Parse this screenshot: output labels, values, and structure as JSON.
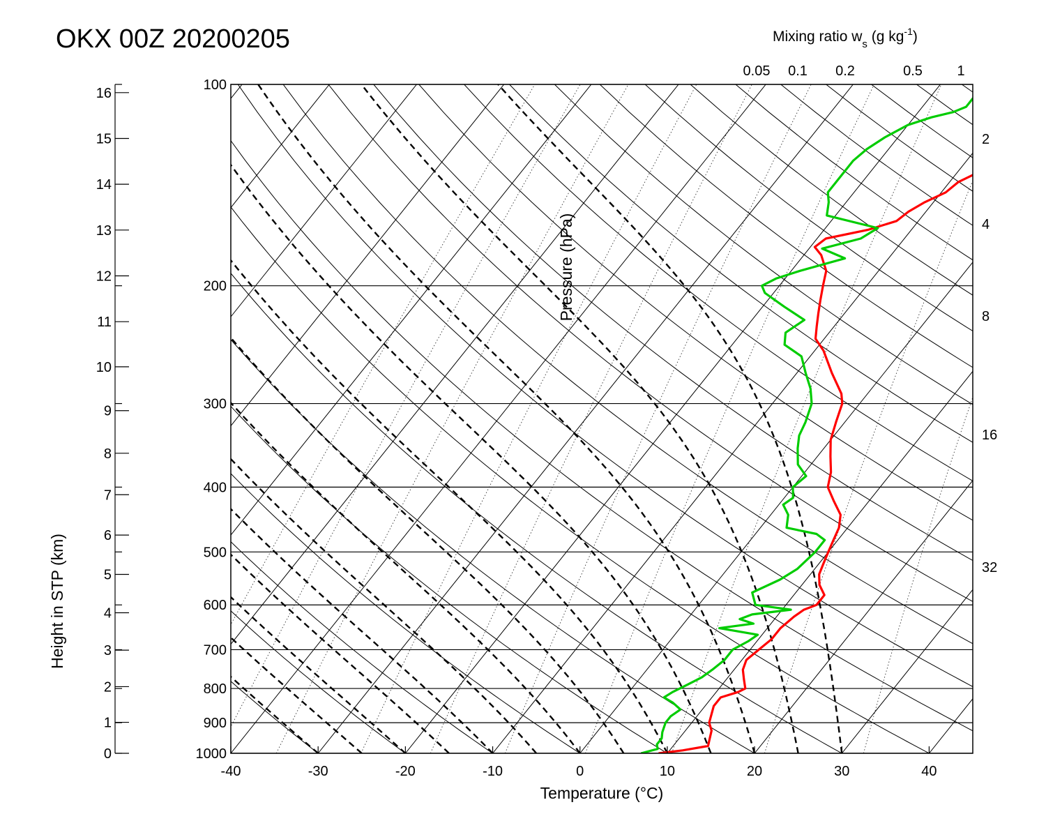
{
  "chart_data": {
    "type": "line",
    "title": "OKX 00Z 20200205",
    "xlabel": "Temperature (°C)",
    "ylabel": "Pressure (hPa)",
    "y2label": "Height in STP (km)",
    "top_label_main": "Mixing ratio w",
    "top_label_sub": "s",
    "top_label_unit": " (g kg",
    "top_label_sup": "-1",
    "top_label_close": ")",
    "xlim": [
      -40,
      45
    ],
    "ylim": [
      1000,
      100
    ],
    "x_ticks": [
      -40,
      -30,
      -20,
      -10,
      0,
      10,
      20,
      30,
      40
    ],
    "p_ticks": [
      100,
      200,
      300,
      400,
      500,
      600,
      700,
      800,
      900,
      1000
    ],
    "height_ticks": [
      0,
      1,
      2,
      3,
      4,
      5,
      6,
      7,
      8,
      9,
      10,
      11,
      12,
      13,
      14,
      15,
      16
    ],
    "mixing_top_labels": [
      "0.05",
      "0.1",
      "0.2",
      "0.5",
      "1"
    ],
    "mixing_right_labels": [
      "2",
      "4",
      "8",
      "16",
      "32"
    ],
    "colors": {
      "temperature": "#ff0000",
      "dewpoint": "#00cc00",
      "grid": "#000000"
    },
    "series": [
      {
        "key": "temperature",
        "points": [
          [
            1000,
            9
          ],
          [
            990,
            11.5
          ],
          [
            975,
            14
          ],
          [
            950,
            13.5
          ],
          [
            925,
            13
          ],
          [
            900,
            12
          ],
          [
            875,
            11.5
          ],
          [
            850,
            11
          ],
          [
            825,
            11
          ],
          [
            810,
            12.5
          ],
          [
            800,
            13
          ],
          [
            775,
            12
          ],
          [
            750,
            11
          ],
          [
            725,
            10.5
          ],
          [
            700,
            11
          ],
          [
            675,
            11.5
          ],
          [
            650,
            11.5
          ],
          [
            625,
            12
          ],
          [
            610,
            12.5
          ],
          [
            600,
            13.5
          ],
          [
            580,
            13.5
          ],
          [
            560,
            12
          ],
          [
            540,
            11
          ],
          [
            520,
            10.5
          ],
          [
            500,
            10
          ],
          [
            480,
            9.5
          ],
          [
            460,
            9
          ],
          [
            440,
            8
          ],
          [
            420,
            6
          ],
          [
            400,
            4
          ],
          [
            380,
            3
          ],
          [
            360,
            1.5
          ],
          [
            340,
            0
          ],
          [
            320,
            -1
          ],
          [
            310,
            -1.5
          ],
          [
            300,
            -2
          ],
          [
            290,
            -3
          ],
          [
            270,
            -6
          ],
          [
            250,
            -9
          ],
          [
            240,
            -11
          ],
          [
            230,
            -12
          ],
          [
            220,
            -13
          ],
          [
            210,
            -14
          ],
          [
            200,
            -15
          ],
          [
            190,
            -16
          ],
          [
            180,
            -18
          ],
          [
            175,
            -19.5
          ],
          [
            170,
            -19
          ],
          [
            165,
            -15
          ],
          [
            160,
            -12.5
          ],
          [
            155,
            -12
          ],
          [
            150,
            -11
          ],
          [
            145,
            -9.5
          ],
          [
            140,
            -9
          ],
          [
            135,
            -7.5
          ],
          [
            130,
            -7
          ],
          [
            125,
            -6
          ],
          [
            120,
            -5.5
          ],
          [
            115,
            -5
          ],
          [
            110,
            -4
          ],
          [
            105,
            -4
          ],
          [
            100,
            -3
          ]
        ]
      },
      {
        "key": "dewpoint",
        "points": [
          [
            1000,
            7
          ],
          [
            985,
            8.5
          ],
          [
            970,
            8
          ],
          [
            950,
            8
          ],
          [
            930,
            7.5
          ],
          [
            900,
            7
          ],
          [
            880,
            7
          ],
          [
            860,
            7.5
          ],
          [
            840,
            6
          ],
          [
            825,
            4.5
          ],
          [
            810,
            5
          ],
          [
            790,
            6
          ],
          [
            770,
            7
          ],
          [
            750,
            7.5
          ],
          [
            725,
            8
          ],
          [
            700,
            8
          ],
          [
            680,
            9
          ],
          [
            665,
            9.5
          ],
          [
            650,
            4.5
          ],
          [
            640,
            8
          ],
          [
            630,
            6
          ],
          [
            620,
            7
          ],
          [
            610,
            11
          ],
          [
            600,
            6.5
          ],
          [
            575,
            5
          ],
          [
            550,
            7
          ],
          [
            530,
            8
          ],
          [
            500,
            8.5
          ],
          [
            480,
            8.5
          ],
          [
            470,
            7
          ],
          [
            460,
            3
          ],
          [
            440,
            2
          ],
          [
            425,
            0.5
          ],
          [
            415,
            1
          ],
          [
            400,
            0
          ],
          [
            385,
            0.5
          ],
          [
            370,
            -1.5
          ],
          [
            350,
            -3
          ],
          [
            335,
            -4
          ],
          [
            320,
            -4.5
          ],
          [
            300,
            -5.5
          ],
          [
            285,
            -7
          ],
          [
            270,
            -9
          ],
          [
            255,
            -11
          ],
          [
            245,
            -14
          ],
          [
            235,
            -15
          ],
          [
            225,
            -14
          ],
          [
            215,
            -17.5
          ],
          [
            205,
            -21
          ],
          [
            200,
            -22
          ],
          [
            195,
            -21
          ],
          [
            190,
            -19
          ],
          [
            182,
            -15
          ],
          [
            176,
            -18.5
          ],
          [
            170,
            -15
          ],
          [
            164,
            -14
          ],
          [
            157,
            -21
          ],
          [
            150,
            -22
          ],
          [
            145,
            -23
          ],
          [
            140,
            -23
          ],
          [
            135,
            -23
          ],
          [
            130,
            -23
          ],
          [
            125,
            -22.5
          ],
          [
            120,
            -21.5
          ],
          [
            115,
            -20
          ],
          [
            112,
            -18
          ],
          [
            110,
            -16
          ],
          [
            108,
            -15
          ],
          [
            105,
            -15
          ],
          [
            100,
            -13.5
          ]
        ]
      }
    ]
  }
}
